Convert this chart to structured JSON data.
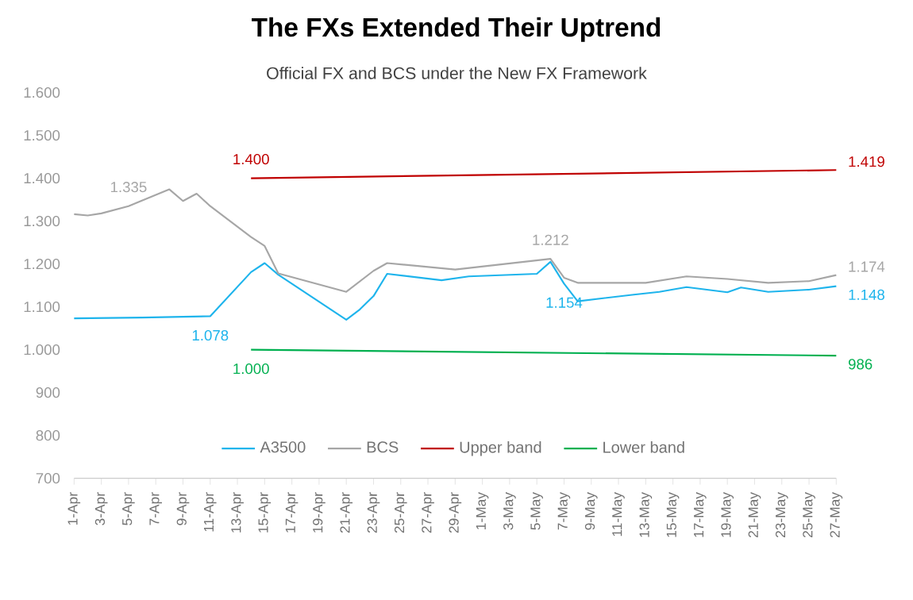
{
  "chart_data": {
    "type": "line",
    "title": "The FXs Extended Their Uptrend",
    "subtitle": "Official FX and BCS under the New FX Framework",
    "categories": [
      "1-Apr",
      null,
      "3-Apr",
      null,
      "5-Apr",
      null,
      "7-Apr",
      null,
      "9-Apr",
      null,
      "11-Apr",
      null,
      "13-Apr",
      null,
      "15-Apr",
      null,
      "17-Apr",
      null,
      "19-Apr",
      null,
      "21-Apr",
      null,
      "23-Apr",
      null,
      "25-Apr",
      null,
      "27-Apr",
      null,
      "29-Apr",
      null,
      "1-May",
      null,
      "3-May",
      null,
      "5-May",
      null,
      "7-May",
      null,
      "9-May",
      null,
      "11-May",
      null,
      "13-May",
      null,
      "15-May",
      null,
      "17-May",
      null,
      "19-May",
      null,
      "21-May",
      null,
      "23-May",
      null,
      "25-May",
      null,
      "27-May"
    ],
    "ylim": [
      700,
      1600
    ],
    "yticks": [
      700,
      800,
      900,
      {
        "value": 1000,
        "label": "1.000"
      },
      {
        "value": 1100,
        "label": "1.100"
      },
      {
        "value": 1200,
        "label": "1.200"
      },
      {
        "value": 1300,
        "label": "1.300"
      },
      {
        "value": 1400,
        "label": "1.400"
      },
      {
        "value": 1500,
        "label": "1.500"
      },
      {
        "value": 1600,
        "label": "1.600"
      }
    ],
    "legend": "bottom",
    "series": [
      {
        "name": "A3500",
        "color": "#1eb4ec",
        "values": [
          1073,
          null,
          null,
          null,
          null,
          1075,
          null,
          null,
          null,
          null,
          1078,
          null,
          null,
          1181,
          1202,
          1175,
          null,
          null,
          null,
          null,
          1070,
          1094,
          1125,
          1177,
          null,
          null,
          null,
          1162,
          null,
          1171,
          null,
          null,
          null,
          null,
          1177,
          1205,
          1154,
          1113,
          null,
          null,
          null,
          1128,
          null,
          1135,
          null,
          1146,
          null,
          null,
          1134,
          1145,
          null,
          1135,
          null,
          null,
          1140,
          null,
          1148
        ],
        "value_labels": [
          null,
          null,
          null,
          null,
          null,
          null,
          null,
          null,
          null,
          null,
          "1.078",
          null,
          null,
          null,
          null,
          null,
          null,
          null,
          null,
          null,
          null,
          null,
          null,
          null,
          null,
          null,
          null,
          null,
          null,
          null,
          null,
          null,
          null,
          null,
          null,
          null,
          "1.154",
          null,
          null,
          null,
          null,
          null,
          null,
          null,
          null,
          null,
          null,
          null,
          null,
          null,
          null,
          null,
          null,
          null,
          null,
          null,
          "1.148"
        ]
      },
      {
        "name": "BCS",
        "color": "#a6a6a6",
        "values": [
          1316,
          1313,
          1318,
          null,
          1335,
          null,
          null,
          1374,
          1347,
          1364,
          1335,
          null,
          null,
          1263,
          1242,
          1178,
          null,
          null,
          null,
          null,
          1135,
          null,
          1184,
          1202,
          null,
          null,
          null,
          null,
          1187,
          null,
          null,
          null,
          null,
          null,
          null,
          1212,
          1168,
          1156,
          null,
          null,
          null,
          null,
          1156,
          null,
          null,
          1171,
          null,
          null,
          1165,
          null,
          null,
          1156,
          null,
          null,
          1160,
          null,
          1174
        ],
        "value_labels": [
          null,
          null,
          null,
          null,
          "1.335",
          null,
          null,
          null,
          null,
          null,
          null,
          null,
          null,
          null,
          null,
          null,
          null,
          null,
          null,
          null,
          null,
          null,
          null,
          null,
          null,
          null,
          null,
          null,
          null,
          null,
          null,
          null,
          null,
          null,
          null,
          "1.212",
          null,
          null,
          null,
          null,
          null,
          null,
          null,
          null,
          null,
          null,
          null,
          null,
          null,
          null,
          null,
          null,
          null,
          null,
          null,
          null,
          "1.174"
        ]
      },
      {
        "name": "Upper band",
        "color": "#c00000",
        "values": [
          null,
          null,
          null,
          null,
          null,
          null,
          null,
          null,
          null,
          null,
          null,
          null,
          null,
          1400,
          null,
          null,
          null,
          null,
          null,
          null,
          null,
          null,
          null,
          null,
          null,
          null,
          null,
          null,
          null,
          null,
          null,
          null,
          null,
          null,
          null,
          null,
          null,
          null,
          null,
          null,
          null,
          null,
          null,
          null,
          null,
          null,
          null,
          null,
          null,
          null,
          null,
          null,
          null,
          null,
          null,
          null,
          1419
        ],
        "value_labels": [
          null,
          null,
          null,
          null,
          null,
          null,
          null,
          null,
          null,
          null,
          null,
          null,
          null,
          "1.400",
          null,
          null,
          null,
          null,
          null,
          null,
          null,
          null,
          null,
          null,
          null,
          null,
          null,
          null,
          null,
          null,
          null,
          null,
          null,
          null,
          null,
          null,
          null,
          null,
          null,
          null,
          null,
          null,
          null,
          null,
          null,
          null,
          null,
          null,
          null,
          null,
          null,
          null,
          null,
          null,
          null,
          null,
          "1.419"
        ]
      },
      {
        "name": "Lower band",
        "color": "#00b050",
        "values": [
          null,
          null,
          null,
          null,
          null,
          null,
          null,
          null,
          null,
          null,
          null,
          null,
          null,
          1000,
          null,
          null,
          null,
          null,
          null,
          null,
          null,
          null,
          null,
          null,
          null,
          null,
          null,
          null,
          null,
          null,
          null,
          null,
          null,
          null,
          null,
          null,
          null,
          null,
          null,
          null,
          null,
          null,
          null,
          null,
          null,
          null,
          null,
          null,
          null,
          null,
          null,
          null,
          null,
          null,
          null,
          null,
          986
        ],
        "value_labels": [
          null,
          null,
          null,
          null,
          null,
          null,
          null,
          null,
          null,
          null,
          null,
          null,
          null,
          "1.000",
          null,
          null,
          null,
          null,
          null,
          null,
          null,
          null,
          null,
          null,
          null,
          null,
          null,
          null,
          null,
          null,
          null,
          null,
          null,
          null,
          null,
          null,
          null,
          null,
          null,
          null,
          null,
          null,
          null,
          null,
          null,
          null,
          null,
          null,
          null,
          null,
          null,
          null,
          null,
          null,
          null,
          null,
          "986"
        ]
      }
    ]
  }
}
